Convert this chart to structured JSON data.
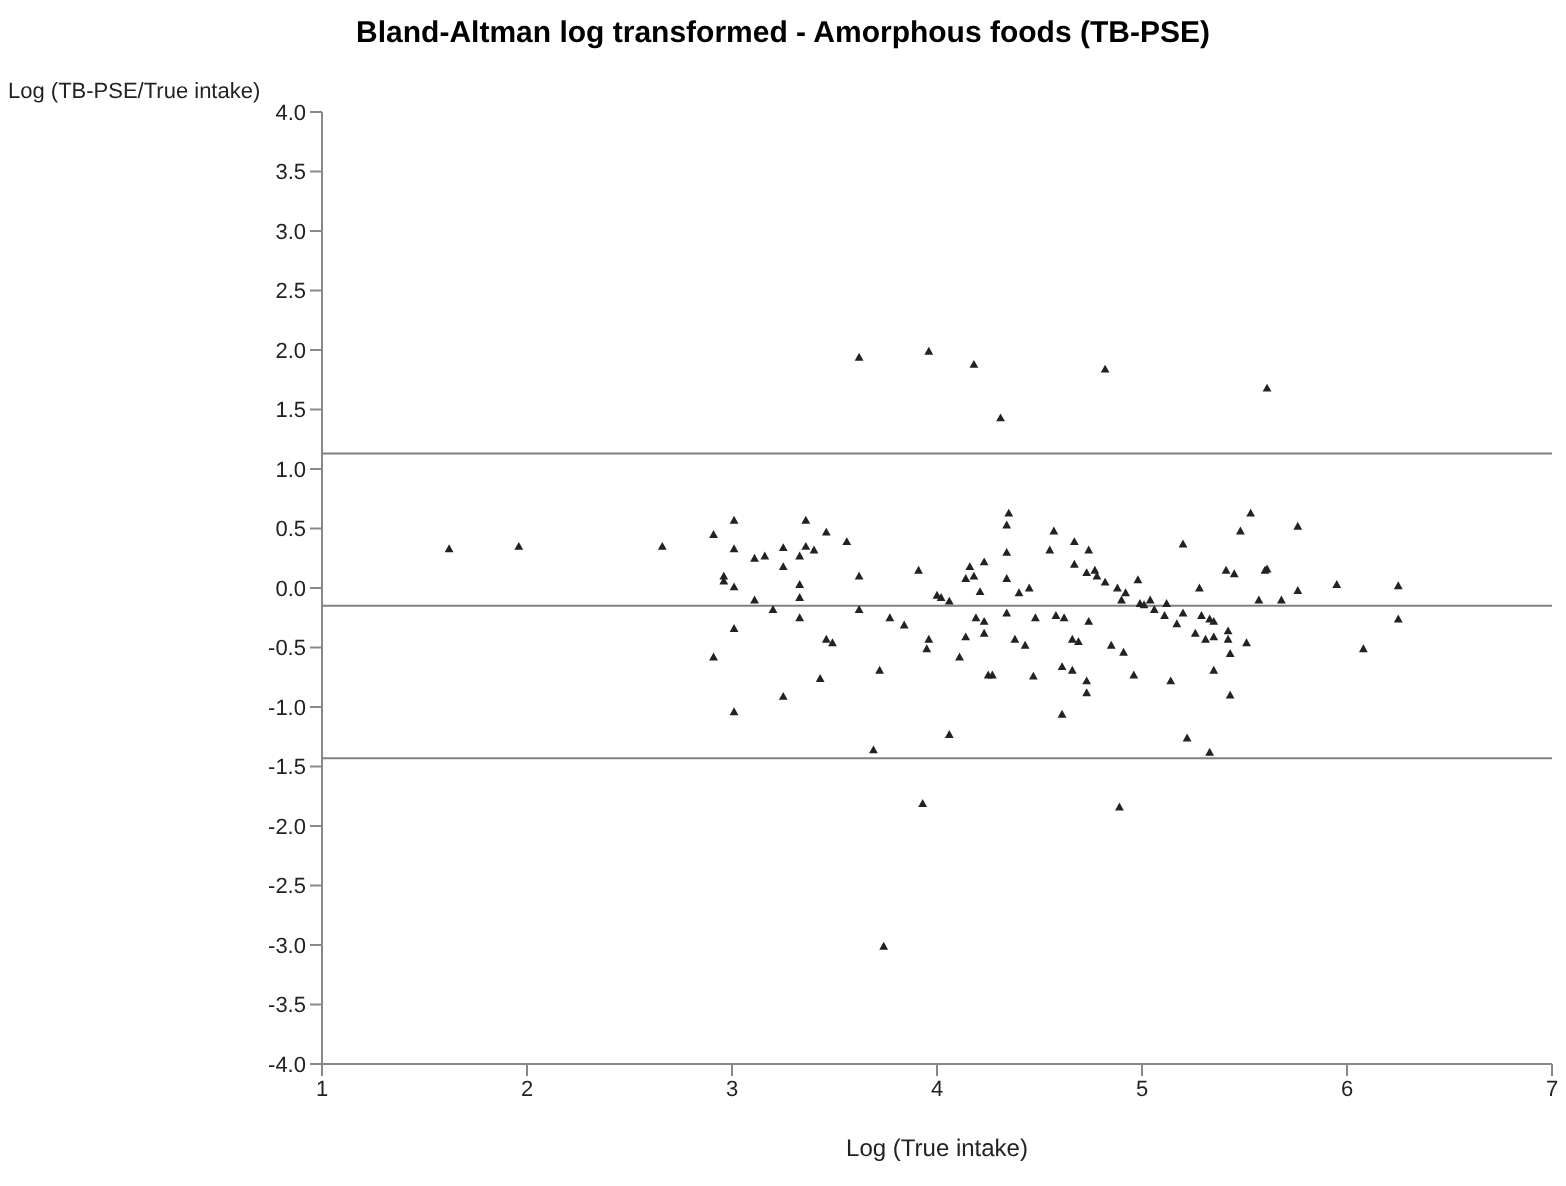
{
  "chart_data": {
    "type": "scatter",
    "title": "Bland-Altman log transformed - Amorphous foods (TB-PSE)",
    "xlabel": "Log (True intake)",
    "ylabel": "Log (TB-PSE/True intake)",
    "xlim": [
      1,
      7
    ],
    "xticks": [
      1,
      2,
      3,
      4,
      5,
      6,
      7
    ],
    "ylim": [
      -4,
      4
    ],
    "yticks": [
      {
        "value": -4,
        "label": "-4.0"
      },
      {
        "value": -3.5,
        "label": "-3.5"
      },
      {
        "value": -3,
        "label": "-3.0"
      },
      {
        "value": -2.5,
        "label": "-2.5"
      },
      {
        "value": -2,
        "label": "-2.0"
      },
      {
        "value": -1.5,
        "label": "-1.5"
      },
      {
        "value": -1,
        "label": "-1.0"
      },
      {
        "value": -0.5,
        "label": "-0.5"
      },
      {
        "value": 0,
        "label": "0.0"
      },
      {
        "value": 0.5,
        "label": "0.5"
      },
      {
        "value": 1,
        "label": "1.0"
      },
      {
        "value": 1.5,
        "label": "1.5"
      },
      {
        "value": 2,
        "label": "2.0"
      },
      {
        "value": 2.5,
        "label": "2.5"
      },
      {
        "value": 3,
        "label": "3.0"
      },
      {
        "value": 3.5,
        "label": "3.5"
      },
      {
        "value": 4,
        "label": "4.0"
      }
    ],
    "marker": "triangle",
    "ref_lines": [
      {
        "axis": "y",
        "value": 1.13,
        "color": "#808080"
      },
      {
        "axis": "y",
        "value": -0.15,
        "color": "#808080"
      },
      {
        "axis": "y",
        "value": -1.43,
        "color": "#808080"
      }
    ],
    "series": [
      {
        "color": "#222222",
        "x": [
          1.62,
          1.96,
          2.66,
          2.91,
          2.91,
          2.96,
          2.96,
          3.01,
          3.01,
          3.01,
          3.01,
          3.01,
          3.11,
          3.16,
          3.11,
          3.2,
          3.25,
          3.25,
          3.25,
          3.33,
          3.33,
          3.33,
          3.33,
          3.36,
          3.36,
          3.4,
          3.46,
          3.46,
          3.49,
          3.43,
          3.56,
          3.62,
          3.62,
          3.62,
          3.69,
          3.72,
          3.74,
          3.77,
          3.84,
          3.91,
          3.93,
          3.95,
          3.96,
          3.96,
          4.0,
          4.02,
          4.06,
          4.06,
          4.11,
          4.14,
          4.14,
          4.16,
          4.18,
          4.18,
          4.19,
          4.23,
          4.23,
          4.23,
          4.21,
          4.25,
          4.27,
          4.31,
          4.34,
          4.35,
          4.34,
          4.34,
          4.34,
          4.38,
          4.4,
          4.43,
          4.45,
          4.47,
          4.48,
          4.55,
          4.57,
          4.58,
          4.62,
          4.61,
          4.61,
          4.66,
          4.66,
          4.69,
          4.67,
          4.67,
          4.74,
          4.73,
          4.74,
          4.73,
          4.73,
          4.77,
          4.78,
          4.82,
          4.82,
          4.85,
          4.88,
          4.89,
          4.9,
          4.92,
          4.91,
          4.96,
          4.98,
          4.99,
          5.01,
          5.04,
          5.06,
          5.11,
          5.12,
          5.14,
          5.17,
          5.2,
          5.2,
          5.22,
          5.26,
          5.28,
          5.29,
          5.31,
          5.33,
          5.35,
          5.33,
          5.35,
          5.35,
          5.41,
          5.42,
          5.42,
          5.43,
          5.43,
          5.45,
          5.48,
          5.51,
          5.53,
          5.57,
          5.6,
          5.61,
          5.61,
          5.68,
          5.76,
          5.76,
          5.95,
          6.08,
          6.25,
          6.25
        ],
        "values": [
          0.33,
          0.35,
          0.35,
          0.45,
          -0.58,
          0.1,
          0.06,
          0.57,
          0.33,
          0.01,
          -0.34,
          -1.04,
          0.25,
          0.27,
          -0.1,
          -0.18,
          0.34,
          0.18,
          -0.91,
          0.27,
          0.03,
          -0.08,
          -0.25,
          0.57,
          0.35,
          0.32,
          0.47,
          -0.43,
          -0.46,
          -0.76,
          0.39,
          1.94,
          0.1,
          -0.18,
          -1.36,
          -0.69,
          -3.01,
          -0.25,
          -0.31,
          0.15,
          -1.81,
          -0.51,
          1.99,
          -0.43,
          -0.06,
          -0.08,
          -0.11,
          -1.23,
          -0.58,
          -0.41,
          0.08,
          0.18,
          0.1,
          1.88,
          -0.25,
          0.22,
          -0.28,
          -0.38,
          -0.03,
          -0.73,
          -0.73,
          1.43,
          0.53,
          0.63,
          0.3,
          0.08,
          -0.21,
          -0.43,
          -0.04,
          -0.48,
          0.0,
          -0.74,
          -0.25,
          0.32,
          0.48,
          -0.23,
          -0.25,
          -0.66,
          -1.06,
          -0.69,
          -0.43,
          -0.45,
          0.39,
          0.2,
          0.32,
          0.13,
          -0.28,
          -0.78,
          -0.88,
          0.15,
          0.1,
          1.84,
          0.05,
          -0.48,
          0.0,
          -1.84,
          -0.1,
          -0.04,
          -0.54,
          -0.73,
          0.07,
          -0.13,
          -0.14,
          -0.1,
          -0.18,
          -0.23,
          -0.13,
          -0.78,
          -0.3,
          0.37,
          -0.21,
          -1.26,
          -0.38,
          0.0,
          -0.23,
          -0.43,
          -0.26,
          -0.28,
          -1.38,
          -0.41,
          -0.69,
          0.15,
          -0.36,
          -0.43,
          -0.55,
          -0.9,
          0.12,
          0.48,
          -0.46,
          0.63,
          -0.1,
          0.15,
          0.16,
          1.68,
          -0.1,
          0.52,
          -0.02,
          0.03,
          -0.51,
          0.02,
          -0.26
        ]
      }
    ]
  }
}
